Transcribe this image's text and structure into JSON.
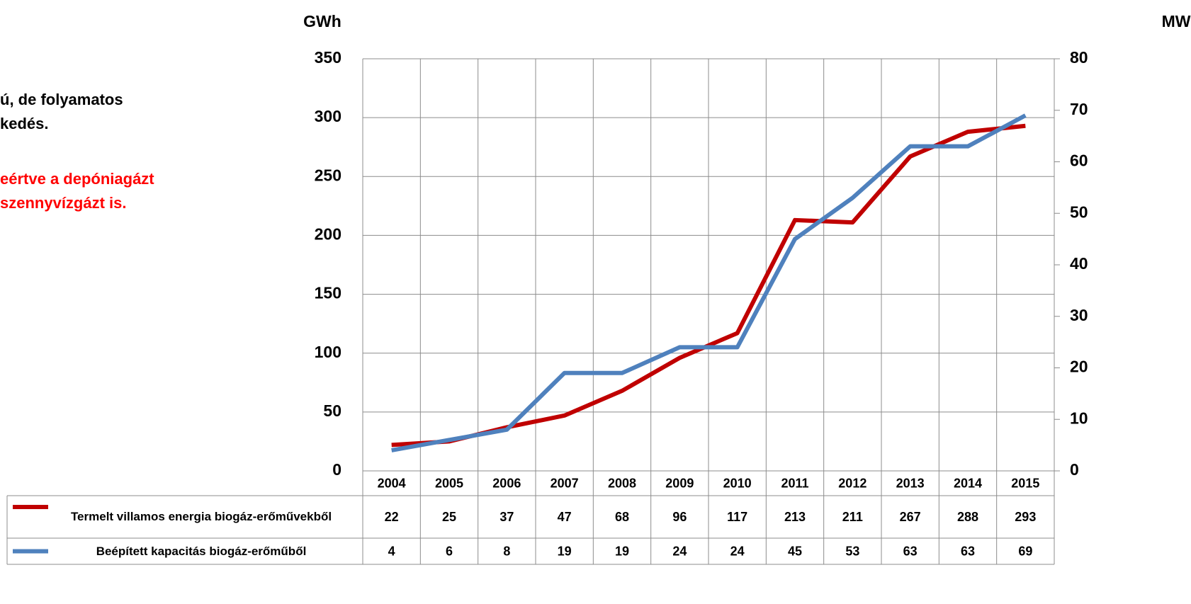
{
  "chart_data": {
    "type": "line",
    "ylabel": "GWh",
    "y2label": "MW",
    "annotations": [
      {
        "lines": [
          "ú, de folyamatos",
          "kedés."
        ],
        "color": "#000000"
      },
      {
        "lines": [
          "eértve a depóniagázt",
          "szennyvízgázt is."
        ],
        "color": "#ff0000"
      }
    ],
    "categories": [
      "2004",
      "2005",
      "2006",
      "2007",
      "2008",
      "2009",
      "2010",
      "2011",
      "2012",
      "2013",
      "2014",
      "2015"
    ],
    "series": [
      {
        "name": "Termelt villamos energia biogáz-erőművekből",
        "color": "#c00000",
        "values": [
          22,
          25,
          37,
          47,
          68,
          96,
          117,
          213,
          211,
          267,
          288,
          293
        ]
      },
      {
        "name": "Beépített kapacitás biogáz-erőműből",
        "color": "#4f81bd",
        "axis": "y2",
        "values": [
          4,
          6,
          8,
          19,
          19,
          24,
          24,
          45,
          53,
          63,
          63,
          69
        ]
      }
    ],
    "ylim": [
      0,
      350
    ],
    "yticks": [
      0,
      50,
      100,
      150,
      200,
      250,
      300,
      350
    ],
    "y2lim": [
      0,
      80
    ],
    "y2ticks": [
      0,
      10,
      20,
      30,
      40,
      50,
      60,
      70,
      80
    ],
    "grid": true
  }
}
